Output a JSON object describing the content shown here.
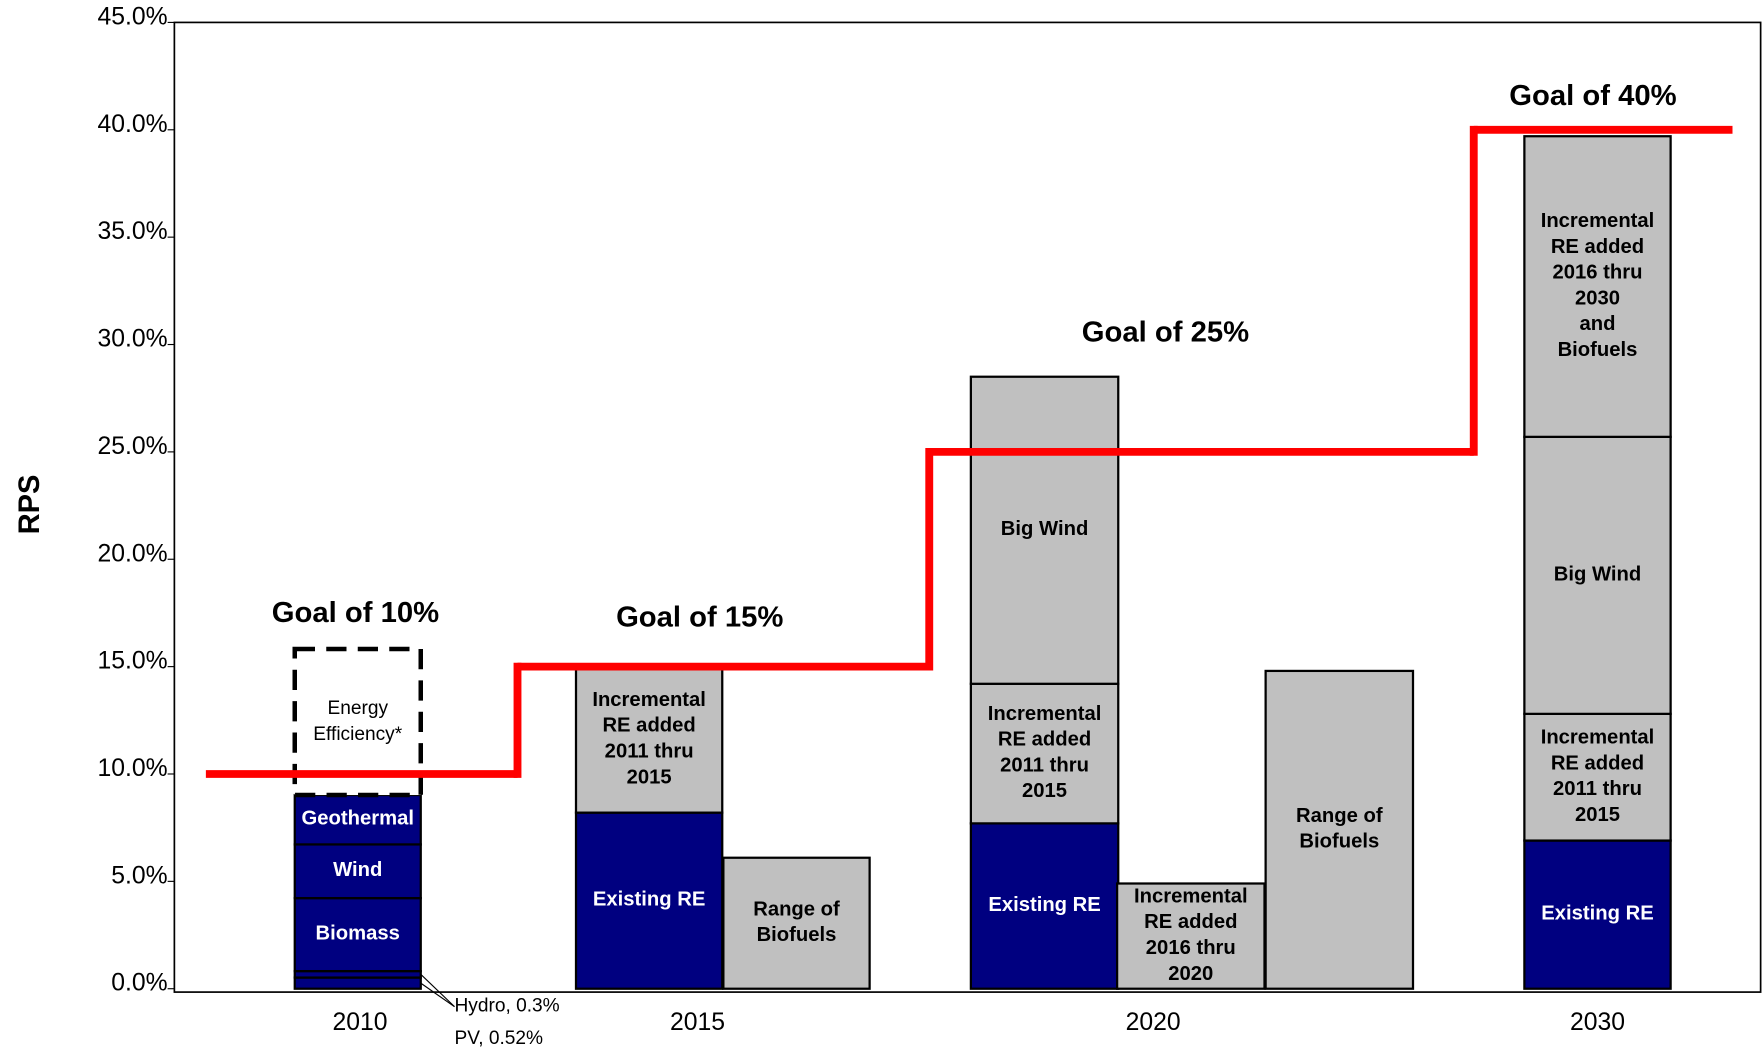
{
  "chart_data": {
    "type": "bar",
    "y_label": "RPS",
    "ylim": [
      0,
      45
    ],
    "yticks": [
      {
        "value": 0,
        "label": "0.0%"
      },
      {
        "value": 5,
        "label": "5.0%"
      },
      {
        "value": 10,
        "label": "10.0%"
      },
      {
        "value": 15,
        "label": "15.0%"
      },
      {
        "value": 20,
        "label": "20.0%"
      },
      {
        "value": 25,
        "label": "25.0%"
      },
      {
        "value": 30,
        "label": "30.0%"
      },
      {
        "value": 35,
        "label": "35.0%"
      },
      {
        "value": 40,
        "label": "40.0%"
      },
      {
        "value": 45,
        "label": "45.0%"
      }
    ],
    "categories": [
      "2010",
      "2015",
      "2020",
      "2030"
    ],
    "groups": [
      [
        [
          {
            "label": "PV, 0.52%",
            "value": 0.52,
            "color": "#000080"
          },
          {
            "label": "Hydro, 0.3%",
            "value": 0.3,
            "color": "#000080"
          },
          {
            "label": "Biomass",
            "value": 3.4,
            "color": "#000080"
          },
          {
            "label": "Wind",
            "value": 2.5,
            "color": "#000080"
          },
          {
            "label": "Geothermal",
            "value": 2.3,
            "color": "#000080"
          },
          {
            "label": "Energy\nEfficiency*",
            "value": 6.8,
            "color": "#ffffff",
            "border": "dashed"
          }
        ]
      ],
      [
        [
          {
            "label": "Existing RE",
            "value": 8.2,
            "color": "#000080"
          },
          {
            "label": "Incremental\nRE added\n2011 thru\n2015",
            "value": 6.8,
            "color": "#c0c0c0"
          }
        ],
        [
          {
            "label": "Range of\nBiofuels",
            "value": 6.1,
            "color": "#c0c0c0"
          }
        ]
      ],
      [
        [
          {
            "label": "Existing RE",
            "value": 7.7,
            "color": "#000080"
          },
          {
            "label": "Incremental\nRE added\n2011 thru\n2015",
            "value": 6.5,
            "color": "#c0c0c0"
          },
          {
            "label": "Big Wind",
            "value": 14.3,
            "color": "#c0c0c0"
          }
        ],
        [
          {
            "label": "Incremental\nRE added\n2016 thru\n2020",
            "value": 4.9,
            "color": "#c0c0c0"
          }
        ],
        [
          {
            "label": "Range of\nBiofuels",
            "value": 14.8,
            "color": "#c0c0c0"
          }
        ]
      ],
      [
        [
          {
            "label": "Existing RE",
            "value": 6.9,
            "color": "#000080"
          },
          {
            "label": "Incremental\nRE added\n2011 thru\n2015",
            "value": 5.9,
            "color": "#c0c0c0"
          },
          {
            "label": "Big Wind",
            "value": 12.9,
            "color": "#c0c0c0"
          },
          {
            "label": "Incremental\nRE added\n2016 thru\n2030\nand\nBiofuels",
            "value": 14.0,
            "color": "#c0c0c0"
          }
        ]
      ]
    ],
    "goal": {
      "color": "#ff0000",
      "values": [
        10,
        15,
        25,
        40
      ],
      "labels": [
        "Goal of 10%",
        "Goal of 15%",
        "Goal of 25%",
        "Goal of 40%"
      ]
    }
  }
}
